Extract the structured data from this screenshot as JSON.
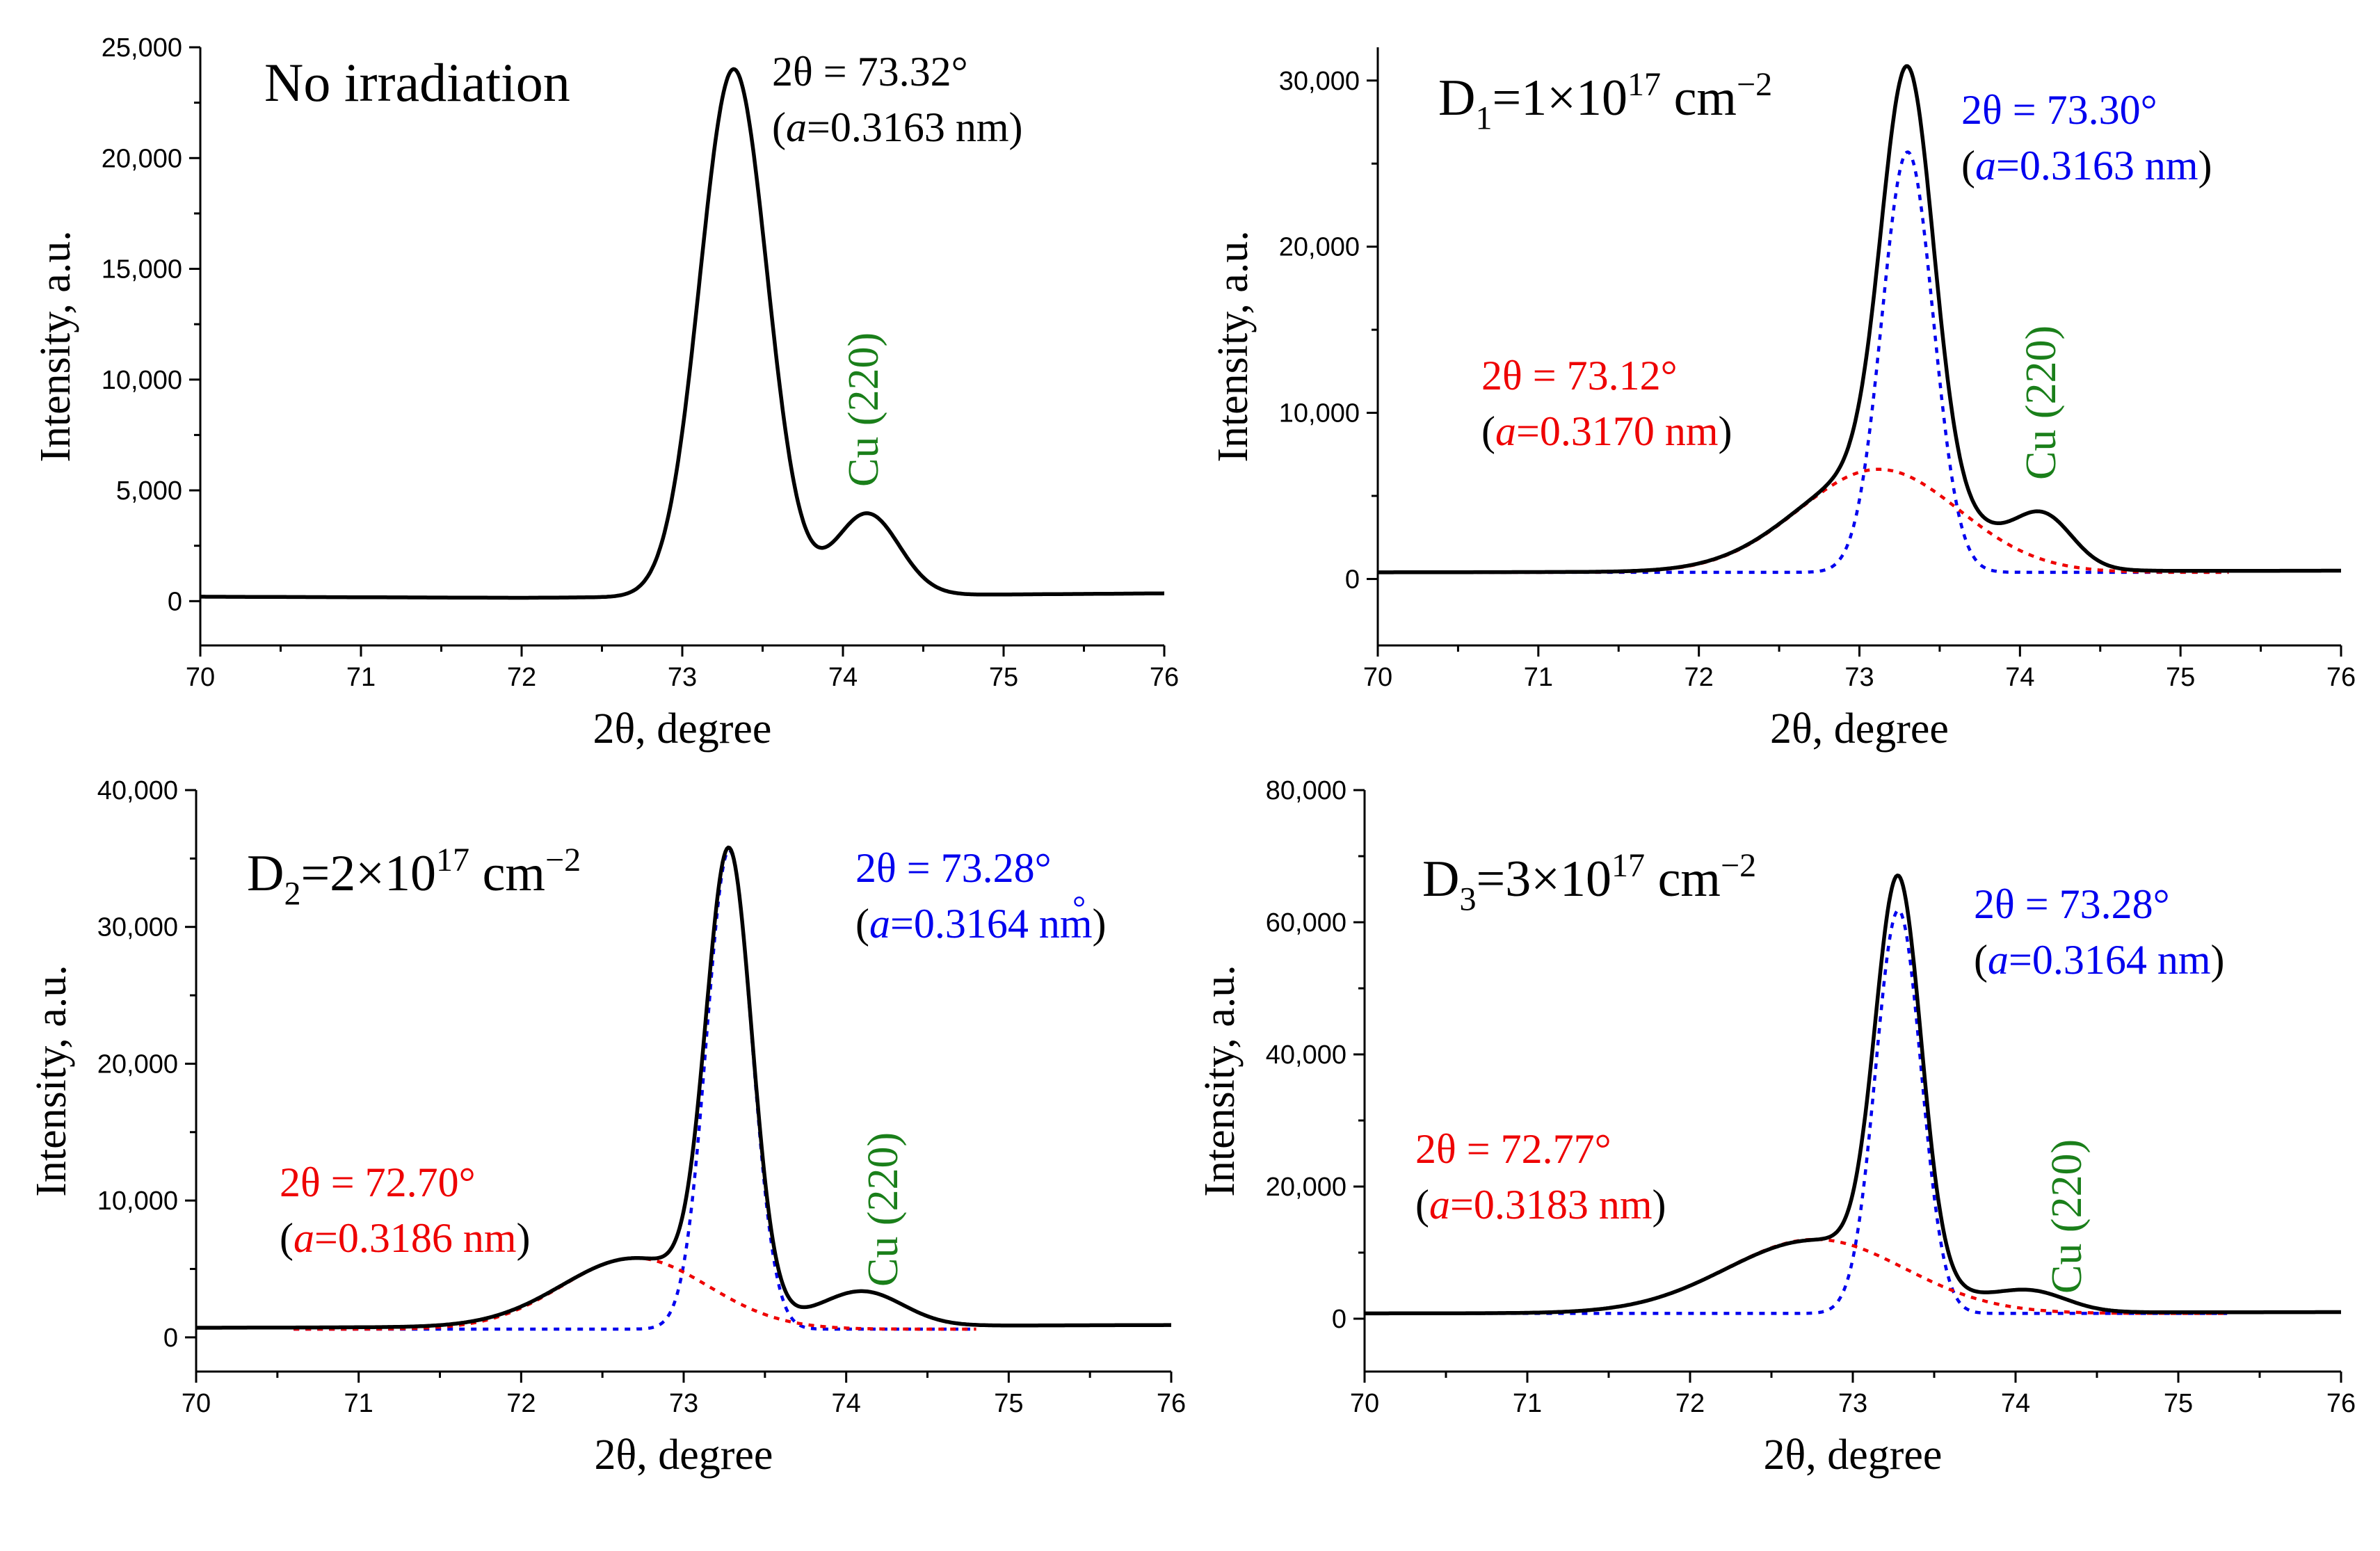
{
  "figure": {
    "description_free": true
  },
  "colors": {
    "measured": "#000000",
    "fit_main": "#0000ee",
    "fit_shifted": "#ee0000",
    "cu_label": "#1a7f1a"
  },
  "chart_data": [
    {
      "id": "p1",
      "type": "line",
      "xlabel": "2θ, degree",
      "ylabel": "Intensity, a.u.",
      "xlim": [
        70,
        76
      ],
      "ylim": [
        -2000,
        25000
      ],
      "xticks": [
        70,
        71,
        72,
        73,
        74,
        75,
        76
      ],
      "yticks": [
        0,
        5000,
        10000,
        15000,
        20000,
        25000
      ],
      "ytick_labels": [
        "0",
        "5,000",
        "10,000",
        "15,000",
        "20,000",
        "25,000"
      ],
      "title_text": "No irradiation",
      "peak_main": {
        "line1": "2θ = 73.32°",
        "a_sym": "a",
        "a_rest": "=0.3163 nm",
        "color": "#000000"
      },
      "cu_label": "Cu (220)",
      "series": [
        {
          "name": "measured",
          "style": "solid",
          "color": "#000000",
          "gaussians": [
            {
              "c": 73.32,
              "a": 23800,
              "s": 0.21
            },
            {
              "c": 74.15,
              "a": 3700,
              "s": 0.2
            }
          ],
          "baseline": [
            [
              70,
              200
            ],
            [
              72,
              150
            ],
            [
              76,
              350
            ]
          ]
        }
      ]
    },
    {
      "id": "p2",
      "type": "line",
      "xlabel": "2θ, degree",
      "ylabel": "Intensity, a.u.",
      "xlim": [
        70,
        76
      ],
      "ylim": [
        -4000,
        32000
      ],
      "xticks": [
        70,
        71,
        72,
        73,
        74,
        75,
        76
      ],
      "yticks": [
        0,
        10000,
        20000,
        30000
      ],
      "ytick_labels": [
        "0",
        "10,000",
        "20,000",
        "30,000"
      ],
      "dose_base": "D",
      "dose_sub": "1",
      "dose_mid": "=1×10",
      "dose_sup": "17",
      "dose_unit": " cm",
      "dose_unit_sup": "−2",
      "peak_main": {
        "line1": "2θ = 73.30°",
        "a_sym": "a",
        "a_rest": "=0.3163 nm",
        "color": "#0000ee"
      },
      "peak_shift": {
        "line1": "2θ = 73.12°",
        "a_sym": "a",
        "a_rest": "=0.3170 nm",
        "color": "#ee0000"
      },
      "cu_label": "Cu (220)",
      "series": [
        {
          "name": "measured",
          "style": "solid",
          "color": "#000000",
          "gaussians": [
            {
              "c": 73.3,
              "a": 24600,
              "s": 0.16
            },
            {
              "c": 73.12,
              "a": 6200,
              "s": 0.5
            },
            {
              "c": 74.15,
              "a": 2800,
              "s": 0.18
            }
          ],
          "baseline": [
            [
              70,
              400
            ],
            [
              76,
              500
            ]
          ]
        },
        {
          "name": "fit 73.30",
          "style": "dotted",
          "color": "#0000ee",
          "xrange": [
            70.25,
            75.3
          ],
          "gaussians": [
            {
              "c": 73.3,
              "a": 25300,
              "s": 0.16
            }
          ],
          "baseline": [
            [
              70,
              400
            ],
            [
              76,
              400
            ]
          ]
        },
        {
          "name": "fit 73.12",
          "style": "dotted",
          "color": "#ee0000",
          "xrange": [
            70.25,
            75.3
          ],
          "gaussians": [
            {
              "c": 73.12,
              "a": 6200,
              "s": 0.5
            }
          ],
          "baseline": [
            [
              70,
              400
            ],
            [
              76,
              400
            ]
          ]
        }
      ]
    },
    {
      "id": "p3",
      "type": "line",
      "xlabel": "2θ, degree",
      "ylabel": "Intensity, a.u.",
      "xlim": [
        70,
        76
      ],
      "ylim": [
        -2500,
        40000
      ],
      "xticks": [
        70,
        71,
        72,
        73,
        74,
        75,
        76
      ],
      "yticks": [
        0,
        10000,
        20000,
        30000,
        40000
      ],
      "ytick_labels": [
        "0",
        "10,000",
        "20,000",
        "30,000",
        "40,000"
      ],
      "dose_base": "D",
      "dose_sub": "2",
      "dose_mid": "=2×10",
      "dose_sup": "17",
      "dose_unit": " cm",
      "dose_unit_sup": "−2",
      "peak_main": {
        "line1": "2θ = 73.28°",
        "a_sym": "a",
        "a_rest": "=0.3164 nm",
        "color": "#0000ee",
        "ring_mark": "°"
      },
      "peak_shift": {
        "line1": "2θ = 72.70°",
        "a_sym": "a",
        "a_rest": "=0.3186 nm",
        "color": "#ee0000"
      },
      "cu_label": "Cu (220)",
      "series": [
        {
          "name": "measured",
          "style": "solid",
          "color": "#000000",
          "gaussians": [
            {
              "c": 73.28,
              "a": 32800,
              "s": 0.14
            },
            {
              "c": 72.7,
              "a": 5000,
              "s": 0.45
            },
            {
              "c": 74.1,
              "a": 2500,
              "s": 0.25
            }
          ],
          "baseline": [
            [
              70,
              700
            ],
            [
              76,
              900
            ]
          ]
        },
        {
          "name": "fit 73.28",
          "style": "dotted",
          "color": "#0000ee",
          "xrange": [
            70.6,
            74.8
          ],
          "gaussians": [
            {
              "c": 73.28,
              "a": 35000,
              "s": 0.14
            }
          ],
          "baseline": [
            [
              70,
              600
            ],
            [
              76,
              600
            ]
          ]
        },
        {
          "name": "fit 72.70",
          "style": "dotted",
          "color": "#ee0000",
          "xrange": [
            70.6,
            74.8
          ],
          "gaussians": [
            {
              "c": 72.7,
              "a": 5200,
              "s": 0.45
            }
          ],
          "baseline": [
            [
              70,
              600
            ],
            [
              76,
              600
            ]
          ]
        }
      ]
    },
    {
      "id": "p4",
      "type": "line",
      "xlabel": "2θ, degree",
      "ylabel": "Intensity, a.u.",
      "xlim": [
        70,
        76
      ],
      "ylim": [
        -8000,
        80000
      ],
      "xticks": [
        70,
        71,
        72,
        73,
        74,
        75,
        76
      ],
      "yticks": [
        0,
        20000,
        40000,
        60000,
        80000
      ],
      "ytick_labels": [
        "0",
        "20,000",
        "40,000",
        "60,000",
        "80,000"
      ],
      "dose_base": "D",
      "dose_sub": "3",
      "dose_mid": "=3×10",
      "dose_sup": "17",
      "dose_unit": " cm",
      "dose_unit_sup": "−2",
      "peak_main": {
        "line1": "2θ = 73.28°",
        "a_sym": "a",
        "a_rest": "=0.3164 nm",
        "color": "#0000ee"
      },
      "peak_shift": {
        "line1": "2θ = 72.77°",
        "a_sym": "a",
        "a_rest": "=0.3183 nm",
        "color": "#ee0000"
      },
      "cu_label": "Cu (220)",
      "series": [
        {
          "name": "measured",
          "style": "solid",
          "color": "#000000",
          "gaussians": [
            {
              "c": 73.28,
              "a": 59000,
              "s": 0.14
            },
            {
              "c": 72.77,
              "a": 11000,
              "s": 0.55
            },
            {
              "c": 74.1,
              "a": 2800,
              "s": 0.22
            }
          ],
          "baseline": [
            [
              70,
              800
            ],
            [
              76,
              1000
            ]
          ]
        },
        {
          "name": "fit 73.28",
          "style": "dotted",
          "color": "#0000ee",
          "xrange": [
            70.1,
            75.3
          ],
          "gaussians": [
            {
              "c": 73.28,
              "a": 61000,
              "s": 0.14
            }
          ],
          "baseline": [
            [
              70,
              800
            ],
            [
              76,
              800
            ]
          ]
        },
        {
          "name": "fit 72.77",
          "style": "dotted",
          "color": "#ee0000",
          "xrange": [
            70.1,
            75.3
          ],
          "gaussians": [
            {
              "c": 72.77,
              "a": 11200,
              "s": 0.55
            }
          ],
          "baseline": [
            [
              70,
              800
            ],
            [
              76,
              800
            ]
          ]
        }
      ]
    }
  ]
}
